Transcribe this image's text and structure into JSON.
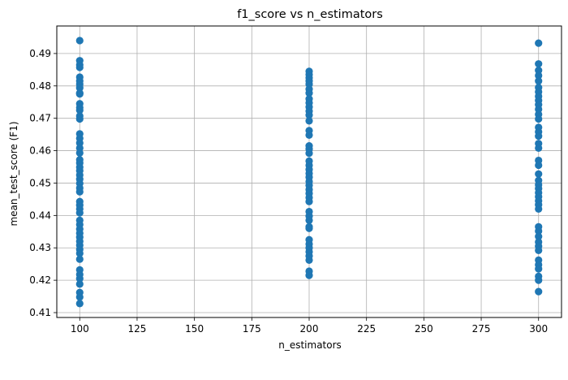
{
  "chart_data": {
    "type": "scatter",
    "title": "f1_score vs n_estimators",
    "xlabel": "n_estimators",
    "ylabel": "mean_test_score (F1)",
    "xlim": [
      90,
      310
    ],
    "ylim": [
      0.4085,
      0.4985
    ],
    "xticks": [
      100,
      125,
      150,
      175,
      200,
      225,
      250,
      275,
      300
    ],
    "yticks": [
      0.41,
      0.42,
      0.43,
      0.44,
      0.45,
      0.46,
      0.47,
      0.48,
      0.49
    ],
    "ytick_labels": [
      "0.41",
      "0.42",
      "0.43",
      "0.44",
      "0.45",
      "0.46",
      "0.47",
      "0.48",
      "0.49"
    ],
    "grid": true,
    "marker_color": "#1f77b4",
    "points": [
      {
        "x": 100,
        "y": 0.494
      },
      {
        "x": 100,
        "y": 0.4878
      },
      {
        "x": 100,
        "y": 0.4865
      },
      {
        "x": 100,
        "y": 0.4857
      },
      {
        "x": 100,
        "y": 0.4827
      },
      {
        "x": 100,
        "y": 0.4815
      },
      {
        "x": 100,
        "y": 0.4805
      },
      {
        "x": 100,
        "y": 0.4794
      },
      {
        "x": 100,
        "y": 0.4778
      },
      {
        "x": 100,
        "y": 0.4775
      },
      {
        "x": 100,
        "y": 0.4745
      },
      {
        "x": 100,
        "y": 0.4733
      },
      {
        "x": 100,
        "y": 0.4725
      },
      {
        "x": 100,
        "y": 0.4707
      },
      {
        "x": 100,
        "y": 0.4698
      },
      {
        "x": 100,
        "y": 0.4652
      },
      {
        "x": 100,
        "y": 0.4638
      },
      {
        "x": 100,
        "y": 0.4624
      },
      {
        "x": 100,
        "y": 0.4608
      },
      {
        "x": 100,
        "y": 0.4593
      },
      {
        "x": 100,
        "y": 0.4572
      },
      {
        "x": 100,
        "y": 0.4562
      },
      {
        "x": 100,
        "y": 0.4549
      },
      {
        "x": 100,
        "y": 0.4538
      },
      {
        "x": 100,
        "y": 0.4525
      },
      {
        "x": 100,
        "y": 0.4512
      },
      {
        "x": 100,
        "y": 0.4499
      },
      {
        "x": 100,
        "y": 0.4485
      },
      {
        "x": 100,
        "y": 0.4473
      },
      {
        "x": 100,
        "y": 0.4443
      },
      {
        "x": 100,
        "y": 0.4432
      },
      {
        "x": 100,
        "y": 0.442
      },
      {
        "x": 100,
        "y": 0.4408
      },
      {
        "x": 100,
        "y": 0.4385
      },
      {
        "x": 100,
        "y": 0.4372
      },
      {
        "x": 100,
        "y": 0.4358
      },
      {
        "x": 100,
        "y": 0.4345
      },
      {
        "x": 100,
        "y": 0.4333
      },
      {
        "x": 100,
        "y": 0.432
      },
      {
        "x": 100,
        "y": 0.4308
      },
      {
        "x": 100,
        "y": 0.4295
      },
      {
        "x": 100,
        "y": 0.4283
      },
      {
        "x": 100,
        "y": 0.4265
      },
      {
        "x": 100,
        "y": 0.4232
      },
      {
        "x": 100,
        "y": 0.4218
      },
      {
        "x": 100,
        "y": 0.4205
      },
      {
        "x": 100,
        "y": 0.4188
      },
      {
        "x": 100,
        "y": 0.4162
      },
      {
        "x": 100,
        "y": 0.4148
      },
      {
        "x": 100,
        "y": 0.4128
      },
      {
        "x": 200,
        "y": 0.4845
      },
      {
        "x": 200,
        "y": 0.4835
      },
      {
        "x": 200,
        "y": 0.4825
      },
      {
        "x": 200,
        "y": 0.4815
      },
      {
        "x": 200,
        "y": 0.4805
      },
      {
        "x": 200,
        "y": 0.479
      },
      {
        "x": 200,
        "y": 0.4778
      },
      {
        "x": 200,
        "y": 0.476
      },
      {
        "x": 200,
        "y": 0.4748
      },
      {
        "x": 200,
        "y": 0.4735
      },
      {
        "x": 200,
        "y": 0.4722
      },
      {
        "x": 200,
        "y": 0.471
      },
      {
        "x": 200,
        "y": 0.4692
      },
      {
        "x": 200,
        "y": 0.4662
      },
      {
        "x": 200,
        "y": 0.4648
      },
      {
        "x": 200,
        "y": 0.4615
      },
      {
        "x": 200,
        "y": 0.4605
      },
      {
        "x": 200,
        "y": 0.4592
      },
      {
        "x": 200,
        "y": 0.4568
      },
      {
        "x": 200,
        "y": 0.4555
      },
      {
        "x": 200,
        "y": 0.4542
      },
      {
        "x": 200,
        "y": 0.453
      },
      {
        "x": 200,
        "y": 0.4518
      },
      {
        "x": 200,
        "y": 0.4505
      },
      {
        "x": 200,
        "y": 0.4493
      },
      {
        "x": 200,
        "y": 0.448
      },
      {
        "x": 200,
        "y": 0.4468
      },
      {
        "x": 200,
        "y": 0.4455
      },
      {
        "x": 200,
        "y": 0.4443
      },
      {
        "x": 200,
        "y": 0.4412
      },
      {
        "x": 200,
        "y": 0.4398
      },
      {
        "x": 200,
        "y": 0.4385
      },
      {
        "x": 200,
        "y": 0.4365
      },
      {
        "x": 200,
        "y": 0.436
      },
      {
        "x": 200,
        "y": 0.4325
      },
      {
        "x": 200,
        "y": 0.4312
      },
      {
        "x": 200,
        "y": 0.43
      },
      {
        "x": 200,
        "y": 0.4288
      },
      {
        "x": 200,
        "y": 0.4275
      },
      {
        "x": 200,
        "y": 0.4262
      },
      {
        "x": 200,
        "y": 0.4228
      },
      {
        "x": 200,
        "y": 0.4215
      },
      {
        "x": 300,
        "y": 0.4932
      },
      {
        "x": 300,
        "y": 0.4868
      },
      {
        "x": 300,
        "y": 0.4848
      },
      {
        "x": 300,
        "y": 0.4832
      },
      {
        "x": 300,
        "y": 0.4815
      },
      {
        "x": 300,
        "y": 0.4795
      },
      {
        "x": 300,
        "y": 0.4782
      },
      {
        "x": 300,
        "y": 0.4768
      },
      {
        "x": 300,
        "y": 0.4755
      },
      {
        "x": 300,
        "y": 0.4742
      },
      {
        "x": 300,
        "y": 0.4728
      },
      {
        "x": 300,
        "y": 0.4712
      },
      {
        "x": 300,
        "y": 0.4698
      },
      {
        "x": 300,
        "y": 0.4672
      },
      {
        "x": 300,
        "y": 0.4658
      },
      {
        "x": 300,
        "y": 0.4645
      },
      {
        "x": 300,
        "y": 0.4622
      },
      {
        "x": 300,
        "y": 0.4608
      },
      {
        "x": 300,
        "y": 0.457
      },
      {
        "x": 300,
        "y": 0.4555
      },
      {
        "x": 300,
        "y": 0.4528
      },
      {
        "x": 300,
        "y": 0.4508
      },
      {
        "x": 300,
        "y": 0.4495
      },
      {
        "x": 300,
        "y": 0.4483
      },
      {
        "x": 300,
        "y": 0.447
      },
      {
        "x": 300,
        "y": 0.4458
      },
      {
        "x": 300,
        "y": 0.4445
      },
      {
        "x": 300,
        "y": 0.4433
      },
      {
        "x": 300,
        "y": 0.442
      },
      {
        "x": 300,
        "y": 0.4365
      },
      {
        "x": 300,
        "y": 0.4352
      },
      {
        "x": 300,
        "y": 0.4335
      },
      {
        "x": 300,
        "y": 0.4318
      },
      {
        "x": 300,
        "y": 0.4305
      },
      {
        "x": 300,
        "y": 0.4292
      },
      {
        "x": 300,
        "y": 0.4262
      },
      {
        "x": 300,
        "y": 0.4248
      },
      {
        "x": 300,
        "y": 0.4235
      },
      {
        "x": 300,
        "y": 0.4212
      },
      {
        "x": 300,
        "y": 0.42
      },
      {
        "x": 300,
        "y": 0.4165
      }
    ]
  }
}
